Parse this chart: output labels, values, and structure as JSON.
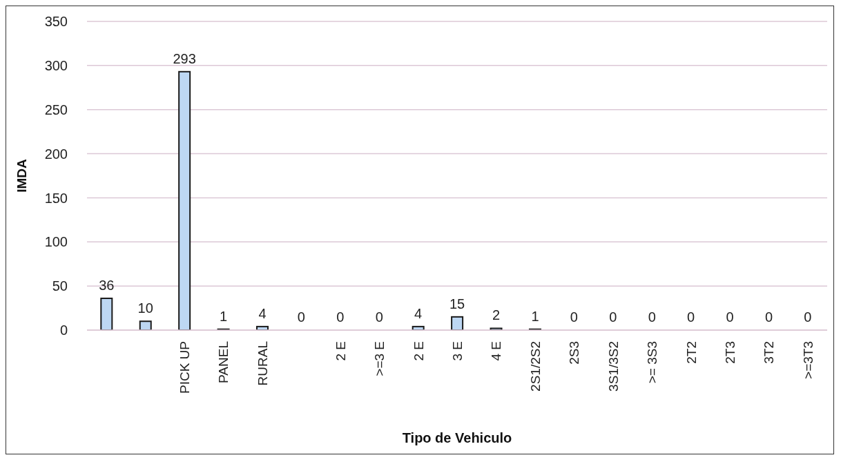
{
  "chart_data": {
    "type": "bar",
    "xlabel": "Tipo de Vehiculo",
    "ylabel": "IMDA",
    "categories": [
      null,
      null,
      "PICK UP",
      "PANEL",
      "RURAL",
      null,
      "2 E",
      ">=3 E",
      "2 E",
      "3 E",
      "4 E",
      "2S1/2S2",
      "2S3",
      "3S1/3S2",
      ">= 3S3",
      "2T2",
      "2T3",
      "3T2",
      ">=3T3"
    ],
    "values": [
      36,
      10,
      293,
      1,
      4,
      0,
      0,
      0,
      4,
      15,
      2,
      1,
      0,
      0,
      0,
      0,
      0,
      0,
      0
    ],
    "color": "#bdd7f3",
    "ylim": [
      0,
      350
    ],
    "yticks": [
      0,
      50,
      100,
      150,
      200,
      250,
      300,
      350
    ],
    "grid": "y",
    "data_labels": true
  }
}
